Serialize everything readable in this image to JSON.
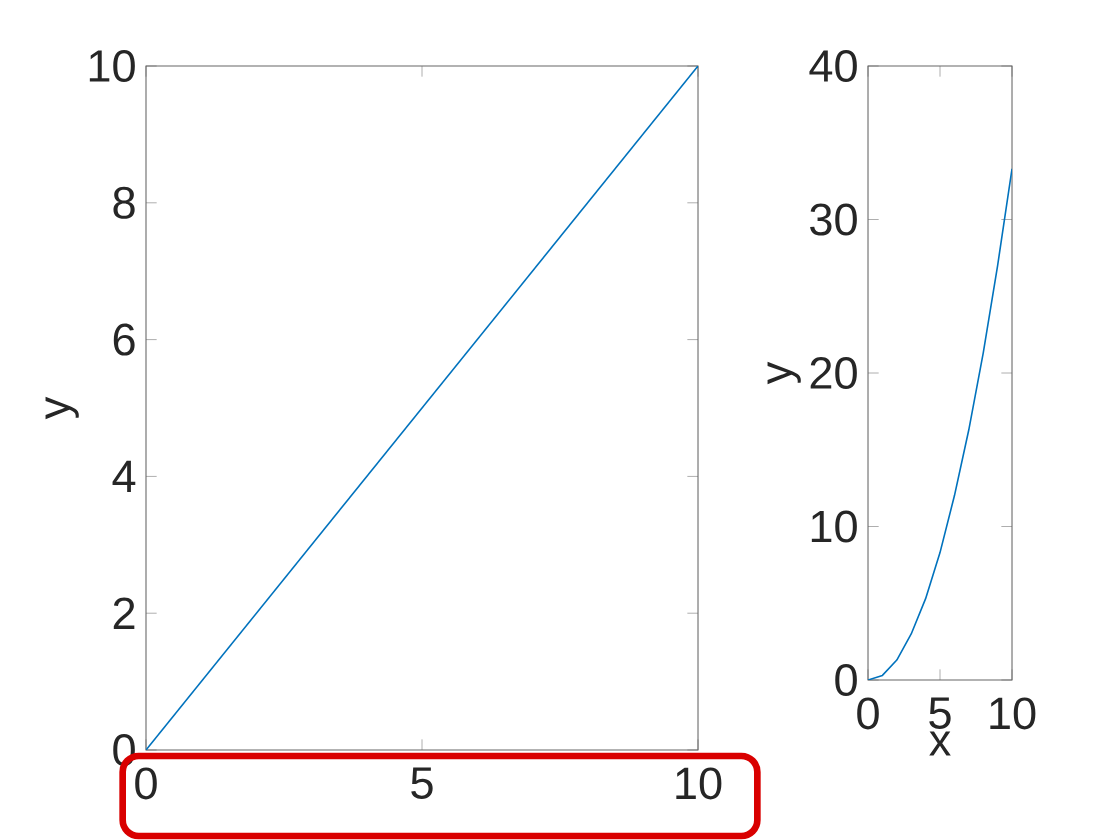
{
  "chart_data": [
    {
      "type": "line",
      "ylabel": "y",
      "x": [
        0,
        10
      ],
      "color": "#0072bd",
      "values": [
        0,
        10
      ],
      "xlim": [
        0,
        10
      ],
      "ylim": [
        0,
        10
      ],
      "xticks": [
        0,
        5,
        10
      ],
      "yticks": [
        0,
        2,
        4,
        6,
        8,
        10
      ]
    },
    {
      "type": "line",
      "xlabel": "x",
      "ylabel": "y",
      "x": [
        0,
        1,
        2,
        3,
        4,
        5,
        6,
        7,
        8,
        9,
        10
      ],
      "color": "#0072bd",
      "values": [
        0,
        0.3,
        1.3,
        3,
        5.3,
        8.3,
        12,
        16.3,
        21.3,
        27,
        33.3
      ],
      "xlim": [
        0,
        10
      ],
      "ylim": [
        0,
        40
      ],
      "xticks": [
        0,
        5,
        10
      ],
      "yticks": [
        0,
        10,
        20,
        30,
        40
      ]
    }
  ]
}
